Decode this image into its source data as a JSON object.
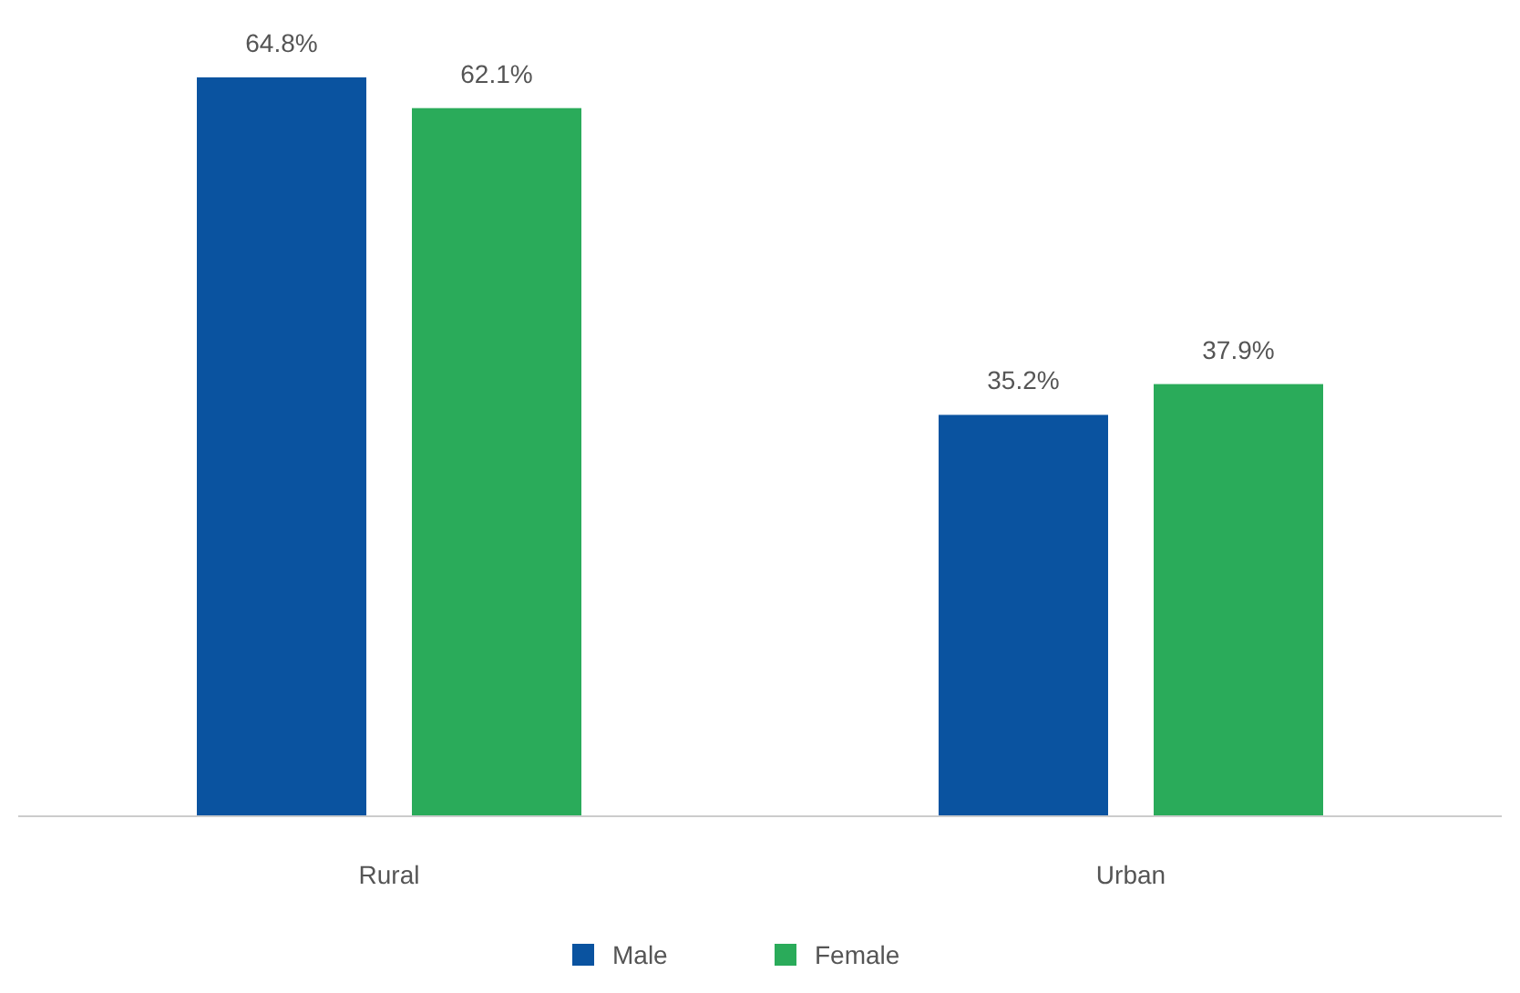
{
  "chart_data": {
    "type": "bar",
    "categories": [
      "Rural",
      "Urban"
    ],
    "series": [
      {
        "name": "Male",
        "color": "#0a53a0",
        "values": [
          64.8,
          35.2
        ],
        "value_labels": [
          "64.8%",
          "35.2%"
        ]
      },
      {
        "name": "Female",
        "color": "#2aab5a",
        "values": [
          62.1,
          37.9
        ],
        "value_labels": [
          "62.1%",
          "37.9%"
        ]
      }
    ],
    "legend": "bottom"
  }
}
